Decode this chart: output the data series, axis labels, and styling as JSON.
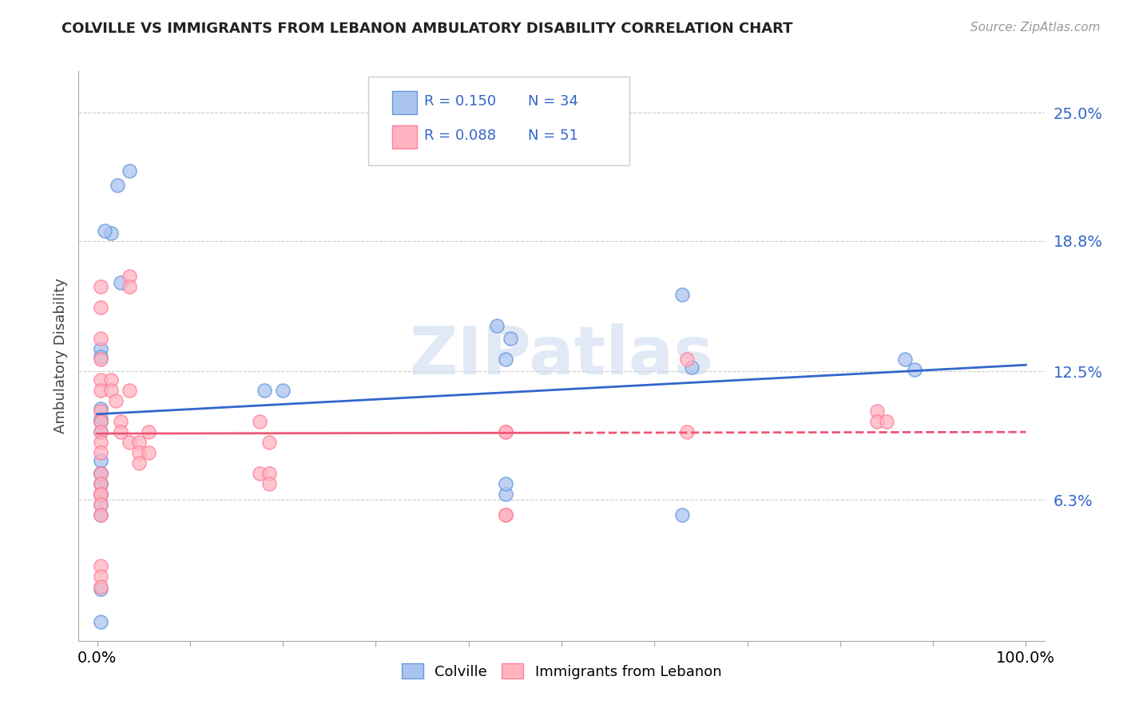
{
  "title": "COLVILLE VS IMMIGRANTS FROM LEBANON AMBULATORY DISABILITY CORRELATION CHART",
  "source": "Source: ZipAtlas.com",
  "ylabel": "Ambulatory Disability",
  "xlim": [
    -0.02,
    1.02
  ],
  "ylim": [
    -0.005,
    0.27
  ],
  "ytick_vals": [
    0.063,
    0.125,
    0.188,
    0.25
  ],
  "ytick_labels": [
    "6.3%",
    "12.5%",
    "18.8%",
    "25.0%"
  ],
  "xtick_vals": [
    0.0,
    0.1,
    0.2,
    0.3,
    0.4,
    0.5,
    0.6,
    0.7,
    0.8,
    0.9,
    1.0
  ],
  "xtick_show": [
    0.0,
    1.0
  ],
  "xtick_show_labels": [
    "0.0%",
    "100.0%"
  ],
  "colville_color": "#aac4f0",
  "colville_edge": "#6699dd",
  "lebanon_color": "#ffb3c1",
  "lebanon_edge": "#ff8099",
  "trend_blue": "#3366cc",
  "trend_pink": "#ee5577",
  "watermark": "ZIPatlas",
  "colville_x": [
    0.015,
    0.008,
    0.022,
    0.035,
    0.025,
    0.004,
    0.004,
    0.004,
    0.004,
    0.004,
    0.004,
    0.004,
    0.004,
    0.004,
    0.004,
    0.004,
    0.004,
    0.004,
    0.004,
    0.004,
    0.18,
    0.2,
    0.43,
    0.445,
    0.44,
    0.44,
    0.63,
    0.64,
    0.87,
    0.88,
    0.44,
    0.63,
    0.004,
    0.004
  ],
  "colville_y": [
    0.192,
    0.193,
    0.215,
    0.222,
    0.168,
    0.136,
    0.132,
    0.107,
    0.102,
    0.101,
    0.096,
    0.082,
    0.076,
    0.076,
    0.071,
    0.071,
    0.066,
    0.066,
    0.061,
    0.02,
    0.116,
    0.116,
    0.147,
    0.141,
    0.131,
    0.066,
    0.162,
    0.127,
    0.131,
    0.126,
    0.071,
    0.056,
    0.056,
    0.004
  ],
  "lebanon_x": [
    0.004,
    0.004,
    0.004,
    0.004,
    0.004,
    0.004,
    0.004,
    0.004,
    0.004,
    0.004,
    0.004,
    0.004,
    0.004,
    0.004,
    0.004,
    0.004,
    0.004,
    0.004,
    0.004,
    0.004,
    0.015,
    0.015,
    0.02,
    0.025,
    0.025,
    0.035,
    0.035,
    0.035,
    0.035,
    0.045,
    0.045,
    0.045,
    0.055,
    0.055,
    0.175,
    0.175,
    0.185,
    0.185,
    0.185,
    0.44,
    0.44,
    0.44,
    0.44,
    0.635,
    0.635,
    0.84,
    0.84,
    0.85
  ],
  "lebanon_y": [
    0.166,
    0.156,
    0.141,
    0.131,
    0.121,
    0.116,
    0.106,
    0.101,
    0.096,
    0.091,
    0.086,
    0.076,
    0.071,
    0.066,
    0.066,
    0.061,
    0.056,
    0.031,
    0.026,
    0.021,
    0.121,
    0.116,
    0.111,
    0.101,
    0.096,
    0.171,
    0.166,
    0.116,
    0.091,
    0.091,
    0.086,
    0.081,
    0.096,
    0.086,
    0.101,
    0.076,
    0.076,
    0.071,
    0.091,
    0.096,
    0.056,
    0.056,
    0.096,
    0.131,
    0.096,
    0.106,
    0.101,
    0.101
  ],
  "trend_blue_x0": 0.0,
  "trend_blue_x1": 1.0,
  "trend_pink_solid_x1": 0.5,
  "trend_pink_dashed_x0": 0.5,
  "trend_pink_dashed_x1": 1.0
}
